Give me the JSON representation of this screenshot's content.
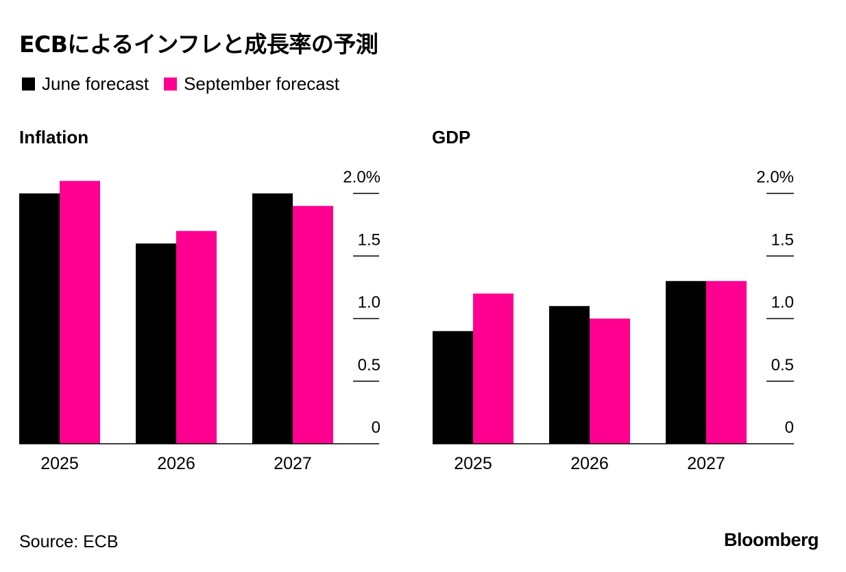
{
  "title": "ECBによるインフレと成長率の予測",
  "legend": [
    {
      "label": "June forecast",
      "color": "#000000"
    },
    {
      "label": "September forecast",
      "color": "#ff0090"
    }
  ],
  "source": "Source: ECB",
  "brand": "Bloomberg",
  "chart_data": [
    {
      "type": "bar",
      "title": "Inflation",
      "categories": [
        "2025",
        "2026",
        "2027"
      ],
      "series": [
        {
          "name": "June forecast",
          "values": [
            2.0,
            1.6,
            2.0
          ]
        },
        {
          "name": "September forecast",
          "values": [
            2.1,
            1.7,
            1.9
          ]
        }
      ],
      "ylim": [
        0,
        2.0
      ],
      "yticks": [
        0,
        0.5,
        1.0,
        1.5,
        2.0
      ],
      "ytick_labels": [
        "0",
        "0.5",
        "1.0",
        "1.5",
        "2.0%"
      ],
      "xlabel": "",
      "ylabel": ""
    },
    {
      "type": "bar",
      "title": "GDP",
      "categories": [
        "2025",
        "2026",
        "2027"
      ],
      "series": [
        {
          "name": "June forecast",
          "values": [
            0.9,
            1.1,
            1.3
          ]
        },
        {
          "name": "September forecast",
          "values": [
            1.2,
            1.0,
            1.3
          ]
        }
      ],
      "ylim": [
        0,
        2.0
      ],
      "yticks": [
        0,
        0.5,
        1.0,
        1.5,
        2.0
      ],
      "ytick_labels": [
        "0",
        "0.5",
        "1.0",
        "1.5",
        "2.0%"
      ],
      "xlabel": "",
      "ylabel": ""
    }
  ]
}
